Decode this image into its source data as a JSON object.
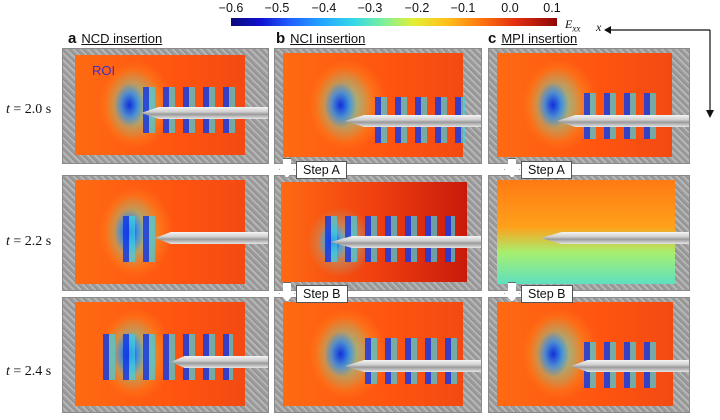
{
  "colorbar": {
    "ticks": [
      "−0.6",
      "−0.5",
      "−0.4",
      "−0.3",
      "−0.2",
      "−0.1",
      "0.0",
      "0.1"
    ],
    "label_main": "E",
    "label_sub": "xx",
    "axis_label": "x"
  },
  "panels": [
    {
      "letter": "a",
      "title": "NCD insertion"
    },
    {
      "letter": "b",
      "title": "NCI insertion"
    },
    {
      "letter": "c",
      "title": "MPI insertion"
    }
  ],
  "rows": [
    {
      "prefix": "t",
      "value": " = 2.0 s"
    },
    {
      "prefix": "t",
      "value": " = 2.2 s"
    },
    {
      "prefix": "t",
      "value": " = 2.4 s"
    }
  ],
  "steps": {
    "a": "Step A",
    "b": "Step B"
  },
  "roi_label": "ROI"
}
